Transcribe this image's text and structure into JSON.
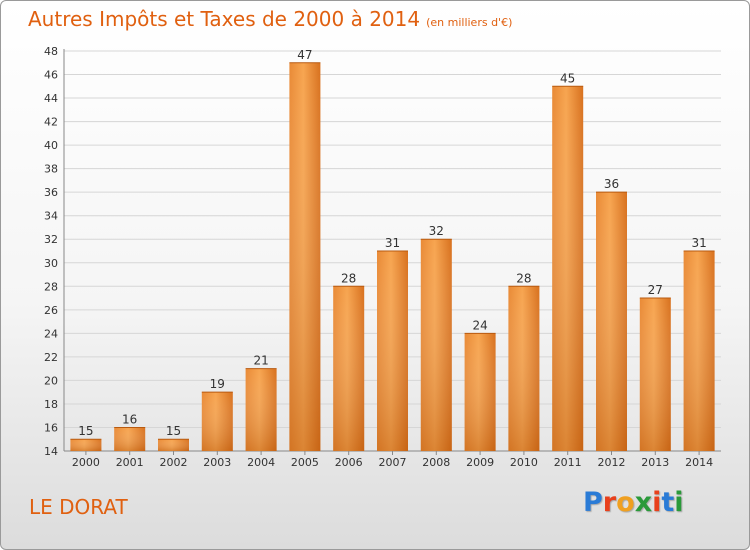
{
  "title": "Autres Impôts et Taxes de 2000 à 2014",
  "subtitle": "(en milliers d'€)",
  "city": "LE DORAT",
  "logo": {
    "text": "Proxiti",
    "letter_colors": [
      "#2a7bd6",
      "#e8401c",
      "#f0a020",
      "#2a9a3a",
      "#e8401c",
      "#2a7bd6",
      "#2a9a3a"
    ]
  },
  "colors": {
    "accent": "#e06010",
    "bar_light": "#f7a550",
    "bar_dark": "#d8711e"
  },
  "chart_data": {
    "type": "bar",
    "categories": [
      "2000",
      "2001",
      "2002",
      "2003",
      "2004",
      "2005",
      "2006",
      "2007",
      "2008",
      "2009",
      "2010",
      "2011",
      "2012",
      "2013",
      "2014"
    ],
    "values": [
      15,
      16,
      15,
      19,
      21,
      47,
      28,
      31,
      32,
      24,
      28,
      45,
      36,
      27,
      31
    ],
    "ylim": [
      14,
      48
    ],
    "yticks": [
      14,
      16,
      18,
      20,
      22,
      24,
      26,
      28,
      30,
      32,
      34,
      36,
      38,
      40,
      42,
      44,
      46,
      48
    ],
    "grid": true,
    "legend": "none"
  }
}
